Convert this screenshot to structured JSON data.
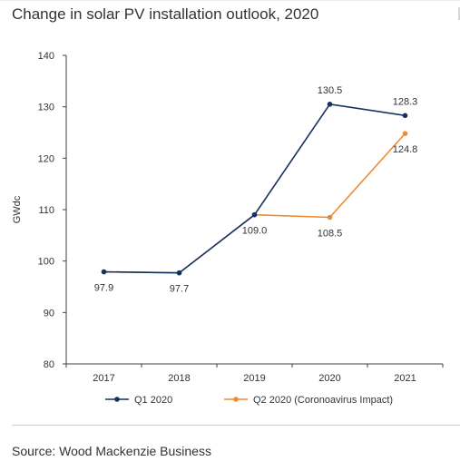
{
  "title": "Change in solar PV installation outlook, 2020",
  "source": "Source:  Wood Mackenzie Business",
  "colors": {
    "q1": "#14325f",
    "q2": "#ef8a2f",
    "axis": "#404040"
  },
  "chart_data": {
    "type": "line",
    "title": "Change in solar PV installation outlook, 2020",
    "xlabel": "",
    "ylabel": "GWdc",
    "categories": [
      "2017",
      "2018",
      "2019",
      "2020",
      "2021"
    ],
    "ylim": [
      80,
      140
    ],
    "yticks": [
      80,
      90,
      100,
      110,
      120,
      130,
      140
    ],
    "grid": false,
    "legend_position": "bottom",
    "series": [
      {
        "name": "Q1 2020",
        "values": [
          97.9,
          97.7,
          109.0,
          130.5,
          128.3
        ],
        "color": "#14325f"
      },
      {
        "name": "Q2 2020 (Coronoavirus Impact)",
        "values": [
          97.9,
          97.7,
          109.0,
          108.5,
          124.8
        ],
        "color": "#ef8a2f"
      }
    ],
    "data_labels": [
      {
        "category": "2017",
        "text": "97.9"
      },
      {
        "category": "2018",
        "text": "97.7"
      },
      {
        "category": "2019",
        "text": "109.0"
      },
      {
        "category": "2020",
        "series": "Q1 2020",
        "text": "130.5"
      },
      {
        "category": "2020",
        "series": "Q2 2020 (Coronoavirus Impact)",
        "text": "108.5"
      },
      {
        "category": "2021",
        "series": "Q1 2020",
        "text": "128.3"
      },
      {
        "category": "2021",
        "series": "Q2 2020 (Coronoavirus Impact)",
        "text": "124.8"
      }
    ]
  }
}
